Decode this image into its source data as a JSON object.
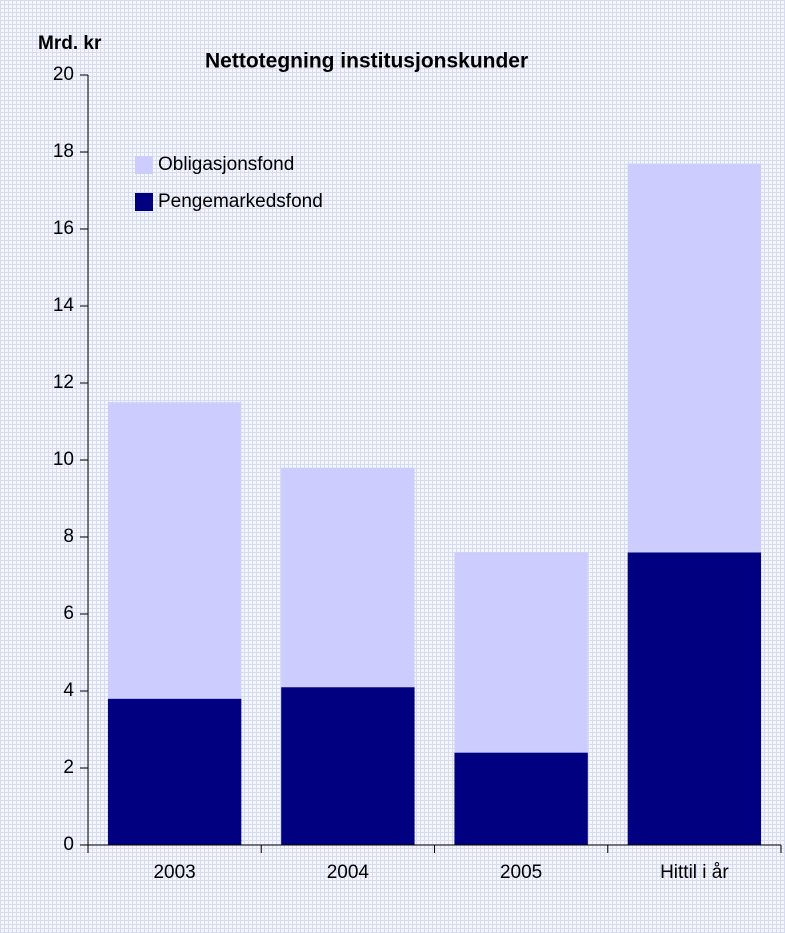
{
  "chart_data": {
    "type": "stacked_bar",
    "title": "Nettotegning institusjonskunder",
    "y_label": "Mrd. kr",
    "categories": [
      "2003",
      "2004",
      "2005",
      "Hittil i år"
    ],
    "series": [
      {
        "name": "Pengemarkedsfond",
        "color": "#000080",
        "values": [
          3.8,
          4.1,
          2.4,
          7.6
        ]
      },
      {
        "name": "Obligasjonsfond",
        "color": "#ccccff",
        "values": [
          7.7,
          5.7,
          5.2,
          10.1
        ]
      }
    ],
    "ylim": [
      0,
      20
    ],
    "yticks": [
      0,
      2,
      4,
      6,
      8,
      10,
      12,
      14,
      16,
      18,
      20
    ],
    "legend": "upper left"
  }
}
